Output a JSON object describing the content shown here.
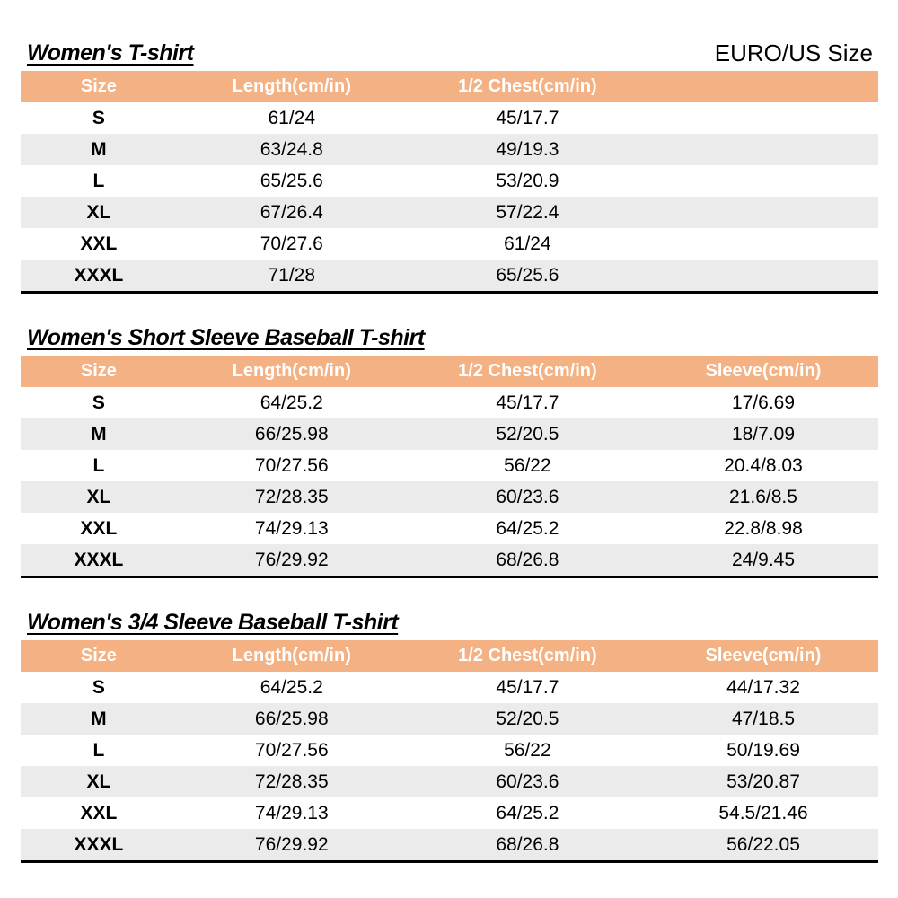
{
  "page": {
    "size_system_label": "EURO/US Size"
  },
  "colors": {
    "header_bg": "#F4B183",
    "stripe_bg": "#EBEBEB",
    "header_text": "#FFFFFF",
    "title_text": "#000000",
    "table_bottom_border": "#000000"
  },
  "tables": [
    {
      "title": "Women's T-shirt",
      "columns": [
        "Size",
        "Length(cm/in)",
        "1/2 Chest(cm/in)"
      ],
      "rows": [
        [
          "S",
          "61/24",
          "45/17.7"
        ],
        [
          "M",
          "63/24.8",
          "49/19.3"
        ],
        [
          "L",
          "65/25.6",
          "53/20.9"
        ],
        [
          "XL",
          "67/26.4",
          "57/22.4"
        ],
        [
          "XXL",
          "70/27.6",
          "61/24"
        ],
        [
          "XXXL",
          "71/28",
          "65/25.6"
        ]
      ]
    },
    {
      "title": "Women's Short Sleeve Baseball T-shirt",
      "columns": [
        "Size",
        "Length(cm/in)",
        "1/2 Chest(cm/in)",
        "Sleeve(cm/in)"
      ],
      "rows": [
        [
          "S",
          "64/25.2",
          "45/17.7",
          "17/6.69"
        ],
        [
          "M",
          "66/25.98",
          "52/20.5",
          "18/7.09"
        ],
        [
          "L",
          "70/27.56",
          "56/22",
          "20.4/8.03"
        ],
        [
          "XL",
          "72/28.35",
          "60/23.6",
          "21.6/8.5"
        ],
        [
          "XXL",
          "74/29.13",
          "64/25.2",
          "22.8/8.98"
        ],
        [
          "XXXL",
          "76/29.92",
          "68/26.8",
          "24/9.45"
        ]
      ]
    },
    {
      "title": "Women's 3/4 Sleeve Baseball T-shirt",
      "columns": [
        "Size",
        "Length(cm/in)",
        "1/2 Chest(cm/in)",
        "Sleeve(cm/in)"
      ],
      "rows": [
        [
          "S",
          "64/25.2",
          "45/17.7",
          "44/17.32"
        ],
        [
          "M",
          "66/25.98",
          "52/20.5",
          "47/18.5"
        ],
        [
          "L",
          "70/27.56",
          "56/22",
          "50/19.69"
        ],
        [
          "XL",
          "72/28.35",
          "60/23.6",
          "53/20.87"
        ],
        [
          "XXL",
          "74/29.13",
          "64/25.2",
          "54.5/21.46"
        ],
        [
          "XXXL",
          "76/29.92",
          "68/26.8",
          "56/22.05"
        ]
      ]
    }
  ]
}
